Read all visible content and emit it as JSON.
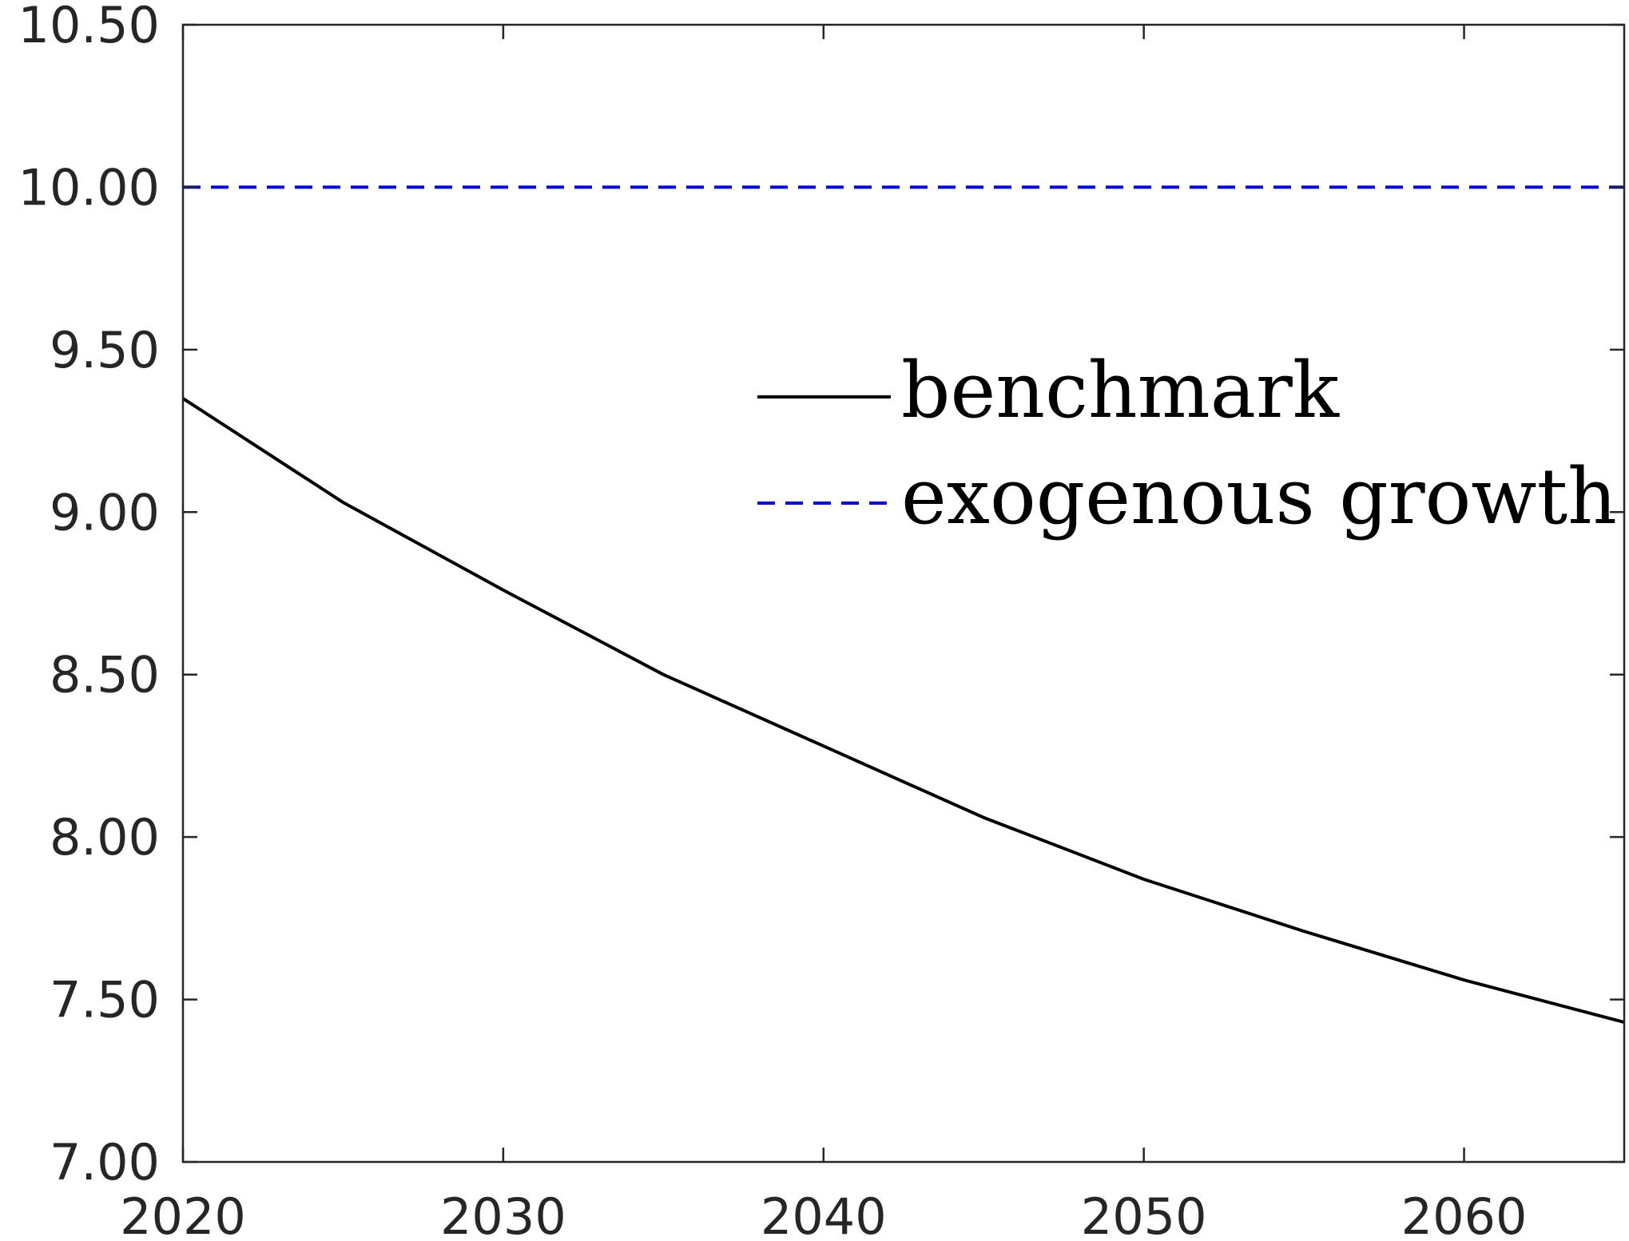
{
  "chart_data": {
    "type": "line",
    "title": "",
    "xlabel": "",
    "ylabel": "",
    "xlim": [
      2020,
      2065
    ],
    "ylim": [
      7.0,
      10.5
    ],
    "xticks": [
      2020,
      2030,
      2040,
      2050,
      2060
    ],
    "xtick_labels": [
      "2020",
      "2030",
      "2040",
      "2050",
      "2060"
    ],
    "yticks": [
      7.0,
      7.5,
      8.0,
      8.5,
      9.0,
      9.5,
      10.0,
      10.5
    ],
    "ytick_labels": [
      "7.00",
      "7.50",
      "8.00",
      "8.50",
      "9.00",
      "9.50",
      "10.00",
      "10.50"
    ],
    "grid": false,
    "legend_position": "center-right",
    "series": [
      {
        "name": "benchmark",
        "style": "solid",
        "color": "#000000",
        "x": [
          2020,
          2025,
          2030,
          2035,
          2040,
          2045,
          2050,
          2055,
          2060,
          2065
        ],
        "y": [
          9.35,
          9.03,
          8.76,
          8.5,
          8.28,
          8.06,
          7.87,
          7.71,
          7.56,
          7.43
        ]
      },
      {
        "name": "exogenous growth",
        "style": "dashed",
        "color": "#0000ee",
        "x": [
          2020,
          2065
        ],
        "y": [
          10.0,
          10.0
        ]
      }
    ]
  }
}
